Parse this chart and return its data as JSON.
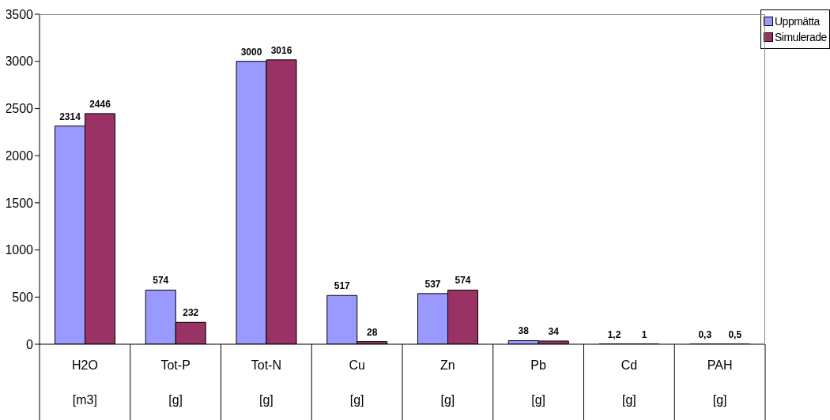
{
  "chart_data": {
    "type": "bar",
    "categories": [
      "H2O\n[m3]",
      "Tot-P\n[g]",
      "Tot-N\n[g]",
      "Cu\n[g]",
      "Zn\n[g]",
      "Pb\n[g]",
      "Cd\n[g]",
      "PAH\n[g]"
    ],
    "series": [
      {
        "name": "Uppmätta",
        "color": "#9999ff",
        "values": [
          2314,
          574,
          3000,
          517,
          537,
          38,
          1.2,
          0.3
        ],
        "value_labels": [
          "2314",
          "574",
          "3000",
          "517",
          "537",
          "38",
          "1,2",
          "0,3"
        ]
      },
      {
        "name": "Simulerade",
        "color": "#993366",
        "values": [
          2446,
          232,
          3016,
          28,
          574,
          34,
          1,
          0.5
        ],
        "value_labels": [
          "2446",
          "232",
          "3016",
          "28",
          "574",
          "34",
          "1",
          "0,5"
        ]
      }
    ],
    "ylim": [
      0,
      3500
    ],
    "yticks": [
      0,
      500,
      1000,
      1500,
      2000,
      2500,
      3000,
      3500
    ],
    "grid": false,
    "legend": "top right"
  }
}
